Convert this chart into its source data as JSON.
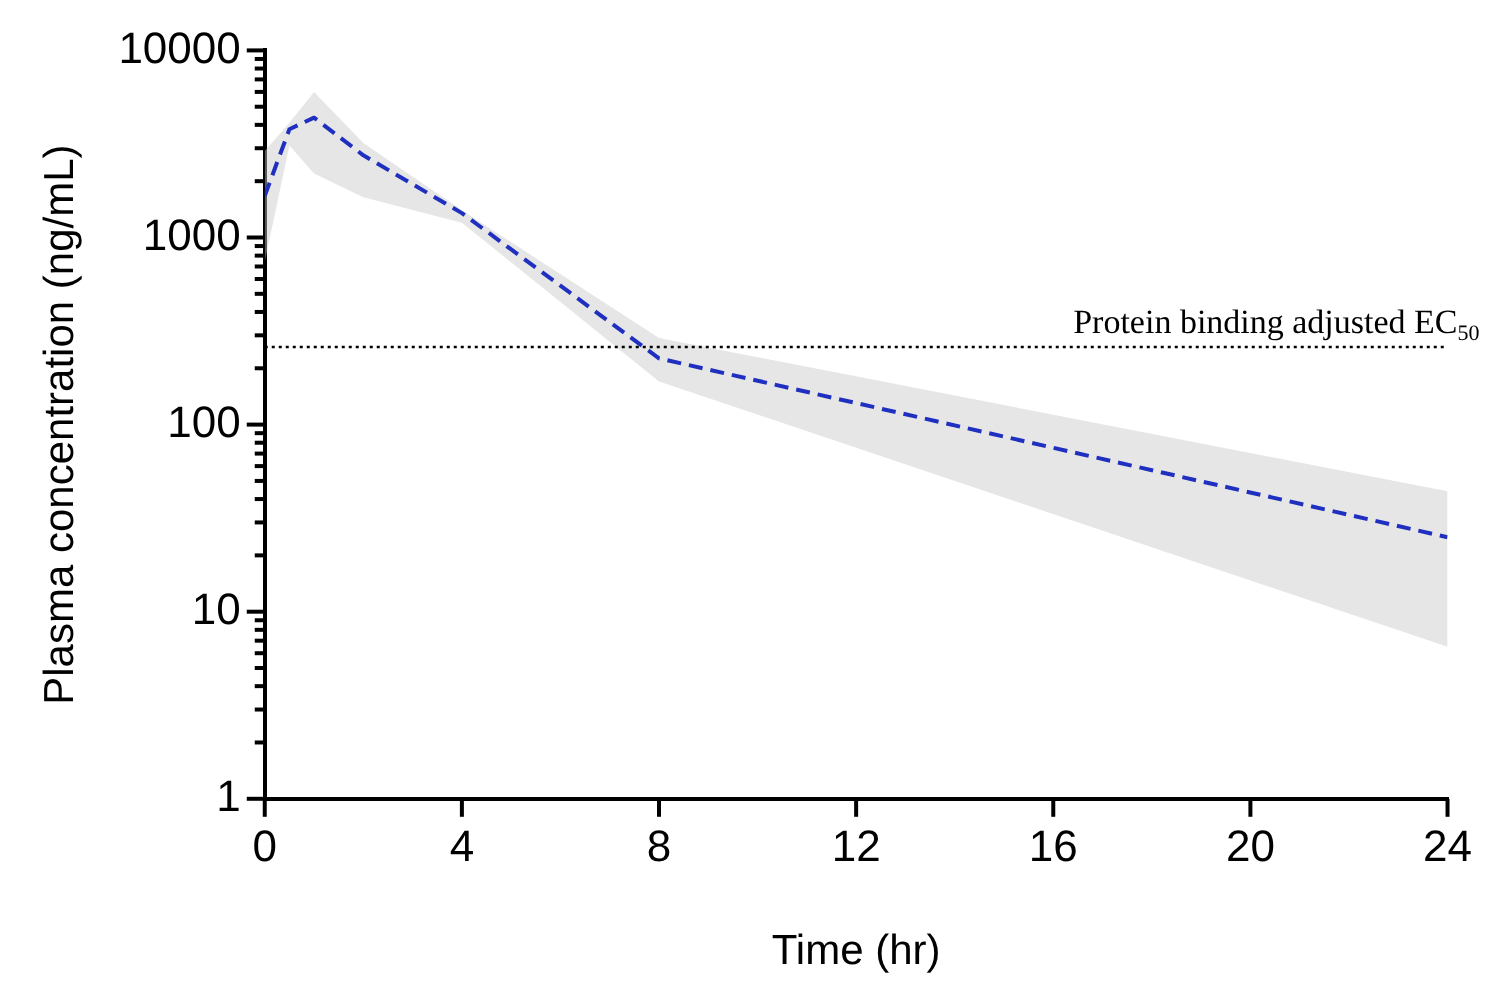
{
  "chart_data": {
    "type": "line",
    "xlabel": "Time (hr)",
    "ylabel": "Plasma concentration (ng/mL)",
    "x": [
      0,
      0.5,
      1,
      2,
      4,
      8,
      24
    ],
    "series": [
      {
        "color": "#1f2fbf",
        "values": [
          1670,
          3790,
          4370,
          2750,
          1350,
          226,
          25
        ],
        "lower": [
          740,
          3100,
          2200,
          1640,
          1200,
          170,
          6.5
        ],
        "upper": [
          2900,
          4100,
          6000,
          3200,
          1400,
          290,
          44
        ]
      }
    ],
    "log": "y",
    "xlim": [
      0,
      24
    ],
    "xticks": [
      0,
      4,
      8,
      12,
      16,
      20,
      24
    ],
    "ylim": [
      1,
      10000
    ],
    "yticks": [
      1,
      {
        "value": 2,
        "label": null
      },
      {
        "value": 3,
        "label": null
      },
      {
        "value": 4,
        "label": null
      },
      {
        "value": 5,
        "label": null
      },
      {
        "value": 6,
        "label": null
      },
      {
        "value": 7,
        "label": null
      },
      {
        "value": 8,
        "label": null
      },
      {
        "value": 9,
        "label": null
      },
      10,
      {
        "value": 20,
        "label": null
      },
      {
        "value": 30,
        "label": null
      },
      {
        "value": 40,
        "label": null
      },
      {
        "value": 50,
        "label": null
      },
      {
        "value": 60,
        "label": null
      },
      {
        "value": 70,
        "label": null
      },
      {
        "value": 80,
        "label": null
      },
      {
        "value": 90,
        "label": null
      },
      100,
      {
        "value": 200,
        "label": null
      },
      {
        "value": 300,
        "label": null
      },
      {
        "value": 400,
        "label": null
      },
      {
        "value": 500,
        "label": null
      },
      {
        "value": 600,
        "label": null
      },
      {
        "value": 700,
        "label": null
      },
      {
        "value": 800,
        "label": null
      },
      {
        "value": 900,
        "label": null
      },
      1000,
      {
        "value": 2000,
        "label": null
      },
      {
        "value": 3000,
        "label": null
      },
      {
        "value": 4000,
        "label": null
      },
      {
        "value": 5000,
        "label": null
      },
      {
        "value": 6000,
        "label": null
      },
      {
        "value": 7000,
        "label": null
      },
      {
        "value": 8000,
        "label": null
      },
      {
        "value": 9000,
        "label": null
      },
      10000
    ],
    "ref_lines": [
      {
        "axis": "y",
        "value": 260,
        "label": "Protein binding adjusted EC$_{50}$",
        "color": "#000000",
        "line_style": "dotted"
      }
    ],
    "grid": false,
    "legend": false,
    "marker": "none",
    "line_style": "dashed"
  }
}
